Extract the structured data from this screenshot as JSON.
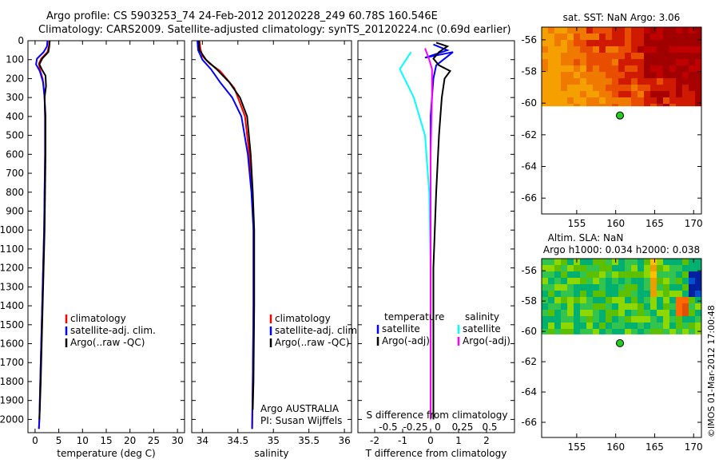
{
  "header": {
    "line1": "Argo profile: CS 5903253_74 24-Feb-2012 20120228_249 60.78S 160.546E",
    "line2": "Climatology: CARS2009. Satellite-adjusted climatology: synTS_20120224.nc (0.69d earlier)"
  },
  "colors": {
    "climatology": "#ff0000",
    "satellite": "#0000ff",
    "argo": "#000000",
    "satellite_salinity": "#00ffff",
    "argo_adj_salinity": "#ff00ff",
    "station_marker": "#22cc22"
  },
  "chart_data": [
    {
      "type": "line",
      "panel": "temperature profile",
      "xlabel": "temperature (deg C)",
      "xlim": [
        -1.5,
        31.5
      ],
      "xticks": [
        "0",
        "5",
        "10",
        "15",
        "20",
        "25",
        "30"
      ],
      "ylim": [
        2070,
        0
      ],
      "yticks": [
        "0",
        "100",
        "200",
        "300",
        "400",
        "500",
        "600",
        "700",
        "800",
        "900",
        "1000",
        "1100",
        "1200",
        "1300",
        "1400",
        "1500",
        "1600",
        "1700",
        "1800",
        "1900",
        "2000"
      ],
      "legend": [
        "climatology",
        "satellite-adj. clim.",
        "Argo(..raw -QC)"
      ],
      "series": [
        {
          "name": "climatology",
          "color": "#ff0000",
          "points": [
            [
              3.0,
              0
            ],
            [
              2.9,
              30
            ],
            [
              2.6,
              60
            ],
            [
              1.3,
              95
            ],
            [
              0.8,
              120
            ],
            [
              1.0,
              150
            ],
            [
              1.6,
              200
            ],
            [
              2.0,
              300
            ],
            [
              2.1,
              400
            ],
            [
              2.1,
              600
            ],
            [
              2.0,
              800
            ],
            [
              1.9,
              1000
            ],
            [
              1.7,
              1200
            ],
            [
              1.5,
              1400
            ],
            [
              1.3,
              1600
            ],
            [
              1.1,
              1800
            ],
            [
              0.9,
              2000
            ],
            [
              0.8,
              2050
            ]
          ]
        },
        {
          "name": "satellite-adj. clim.",
          "color": "#0000ff",
          "points": [
            [
              2.6,
              0
            ],
            [
              2.5,
              30
            ],
            [
              1.8,
              60
            ],
            [
              0.4,
              95
            ],
            [
              0.2,
              125
            ],
            [
              1.0,
              160
            ],
            [
              1.7,
              220
            ],
            [
              2.0,
              300
            ],
            [
              2.1,
              400
            ],
            [
              2.1,
              600
            ],
            [
              2.0,
              800
            ],
            [
              1.9,
              1000
            ],
            [
              1.7,
              1200
            ],
            [
              1.5,
              1400
            ],
            [
              1.3,
              1600
            ],
            [
              1.1,
              1800
            ],
            [
              0.9,
              2000
            ],
            [
              0.8,
              2050
            ]
          ]
        },
        {
          "name": "Argo(..raw -QC)",
          "color": "#000000",
          "points": [
            [
              3.1,
              0
            ],
            [
              3.0,
              30
            ],
            [
              2.8,
              60
            ],
            [
              1.5,
              95
            ],
            [
              0.9,
              125
            ],
            [
              1.4,
              150
            ],
            [
              2.2,
              185
            ],
            [
              2.3,
              240
            ],
            [
              2.0,
              300
            ],
            [
              2.2,
              400
            ],
            [
              2.2,
              600
            ],
            [
              2.1,
              800
            ],
            [
              2.0,
              1000
            ],
            [
              1.8,
              1200
            ],
            [
              1.6,
              1400
            ],
            [
              1.4,
              1600
            ],
            [
              1.2,
              1800
            ],
            [
              1.0,
              1950
            ],
            [
              0.9,
              2000
            ]
          ]
        }
      ]
    },
    {
      "type": "line",
      "panel": "salinity profile",
      "xlabel": "salinity",
      "xlim": [
        33.85,
        36.1
      ],
      "xticks": [
        "34",
        "34.5",
        "35",
        "35.5",
        "36"
      ],
      "ylim": [
        2070,
        0
      ],
      "legend": [
        "climatology",
        "satellite-adj. clim.",
        "Argo(..raw -QC)"
      ],
      "annotation": [
        "Argo AUSTRALIA",
        "PI: Susan Wijffels"
      ],
      "series": [
        {
          "name": "climatology",
          "color": "#ff0000",
          "points": [
            [
              33.96,
              0
            ],
            [
              33.97,
              40
            ],
            [
              34.0,
              80
            ],
            [
              34.1,
              120
            ],
            [
              34.25,
              160
            ],
            [
              34.45,
              250
            ],
            [
              34.6,
              400
            ],
            [
              34.66,
              600
            ],
            [
              34.7,
              800
            ],
            [
              34.72,
              1000
            ],
            [
              34.72,
              1400
            ],
            [
              34.71,
              1800
            ],
            [
              34.7,
              2050
            ]
          ]
        },
        {
          "name": "satellite-adj. clim.",
          "color": "#0000ff",
          "points": [
            [
              33.93,
              0
            ],
            [
              33.94,
              50
            ],
            [
              34.0,
              100
            ],
            [
              34.12,
              150
            ],
            [
              34.25,
              220
            ],
            [
              34.42,
              300
            ],
            [
              34.55,
              400
            ],
            [
              34.64,
              600
            ],
            [
              34.69,
              800
            ],
            [
              34.72,
              1000
            ],
            [
              34.72,
              1400
            ],
            [
              34.71,
              1800
            ],
            [
              34.7,
              2050
            ]
          ]
        },
        {
          "name": "Argo(..raw -QC)",
          "color": "#000000",
          "points": [
            [
              33.95,
              0
            ],
            [
              33.96,
              50
            ],
            [
              34.05,
              100
            ],
            [
              34.2,
              150
            ],
            [
              34.38,
              220
            ],
            [
              34.53,
              300
            ],
            [
              34.63,
              400
            ],
            [
              34.68,
              600
            ],
            [
              34.71,
              800
            ],
            [
              34.73,
              1000
            ],
            [
              34.73,
              1400
            ],
            [
              34.72,
              1800
            ],
            [
              34.71,
              1950
            ]
          ]
        }
      ]
    },
    {
      "type": "line",
      "panel": "difference from climatology",
      "xlabel": "T difference from climatology",
      "xlabel_top": "S difference from climatology",
      "xlim": [
        -2.6,
        3.0
      ],
      "xticks": [
        "-2",
        "-1",
        "0",
        "1",
        "2"
      ],
      "xticks_s": [
        "-0.5",
        "-0.25",
        "0",
        "0.25",
        "0.5"
      ],
      "ylim": [
        2070,
        0
      ],
      "legend_groups": [
        {
          "title": "temperature",
          "items": [
            "satellite",
            "Argo(-adj)"
          ]
        },
        {
          "title": "salinity",
          "items": [
            "satellite",
            "Argo(-adj)"
          ]
        }
      ],
      "series": [
        {
          "name": "temperature satellite",
          "color": "#0000ff",
          "points": [
            [
              0.1,
              20
            ],
            [
              0.6,
              50
            ],
            [
              -0.2,
              90
            ],
            [
              0.8,
              60
            ],
            [
              0.2,
              130
            ],
            [
              0.1,
              200
            ],
            [
              0.0,
              400
            ],
            [
              0.0,
              800
            ],
            [
              0.0,
              1200
            ],
            [
              0.0,
              1600
            ],
            [
              0.0,
              2000
            ]
          ]
        },
        {
          "name": "temperature Argo(-adj)",
          "color": "#000000",
          "points": [
            [
              0.2,
              10
            ],
            [
              0.6,
              30
            ],
            [
              0.3,
              60
            ],
            [
              0.1,
              95
            ],
            [
              0.3,
              130
            ],
            [
              0.7,
              160
            ],
            [
              0.5,
              200
            ],
            [
              0.4,
              300
            ],
            [
              0.3,
              500
            ],
            [
              0.2,
              800
            ],
            [
              0.1,
              1200
            ],
            [
              0.1,
              1600
            ],
            [
              0.1,
              2000
            ]
          ]
        },
        {
          "name": "salinity satellite",
          "color": "#00ffff",
          "points": [
            [
              -0.7,
              60
            ],
            [
              -1.1,
              150
            ],
            [
              -0.6,
              300
            ],
            [
              -0.2,
              500
            ],
            [
              -0.05,
              800
            ],
            [
              0.0,
              1200
            ],
            [
              0.0,
              1600
            ],
            [
              0.0,
              2000
            ]
          ]
        },
        {
          "name": "salinity Argo(-adj)",
          "color": "#ff00ff",
          "points": [
            [
              -0.2,
              40
            ],
            [
              -0.05,
              100
            ],
            [
              0.05,
              150
            ],
            [
              0.05,
              300
            ],
            [
              0.0,
              600
            ],
            [
              0.0,
              1000
            ],
            [
              0.0,
              1400
            ],
            [
              0.0,
              2000
            ]
          ]
        }
      ]
    },
    {
      "type": "heatmap",
      "panel": "SST map",
      "title": "sat. SST: NaN Argo: 3.06",
      "xlim": [
        150.5,
        171
      ],
      "ylim": [
        -67,
        -55.2
      ],
      "xticks": [
        "155",
        "160",
        "165",
        "170"
      ],
      "yticks": [
        "-56",
        "-58",
        "-60",
        "-62",
        "-64",
        "-66"
      ],
      "data_extent_lat": [
        -60.2,
        -55.2
      ],
      "marker": {
        "lon": 160.546,
        "lat": -60.78
      }
    },
    {
      "type": "heatmap",
      "panel": "altimetry map",
      "title_line1": "Altim. SLA: NaN",
      "title_line2": "Argo h1000: 0.034 h2000: 0.038",
      "xlim": [
        150.5,
        171
      ],
      "ylim": [
        -67,
        -55.2
      ],
      "xticks": [
        "155",
        "160",
        "165",
        "170"
      ],
      "yticks": [
        "-56",
        "-58",
        "-60",
        "-62",
        "-64",
        "-66"
      ],
      "data_extent_lat": [
        -60.2,
        -55.2
      ],
      "marker": {
        "lon": 160.546,
        "lat": -60.78
      }
    }
  ],
  "footer": {
    "stamp": "©IMOS 01-Mar-2012 17:00:48"
  }
}
